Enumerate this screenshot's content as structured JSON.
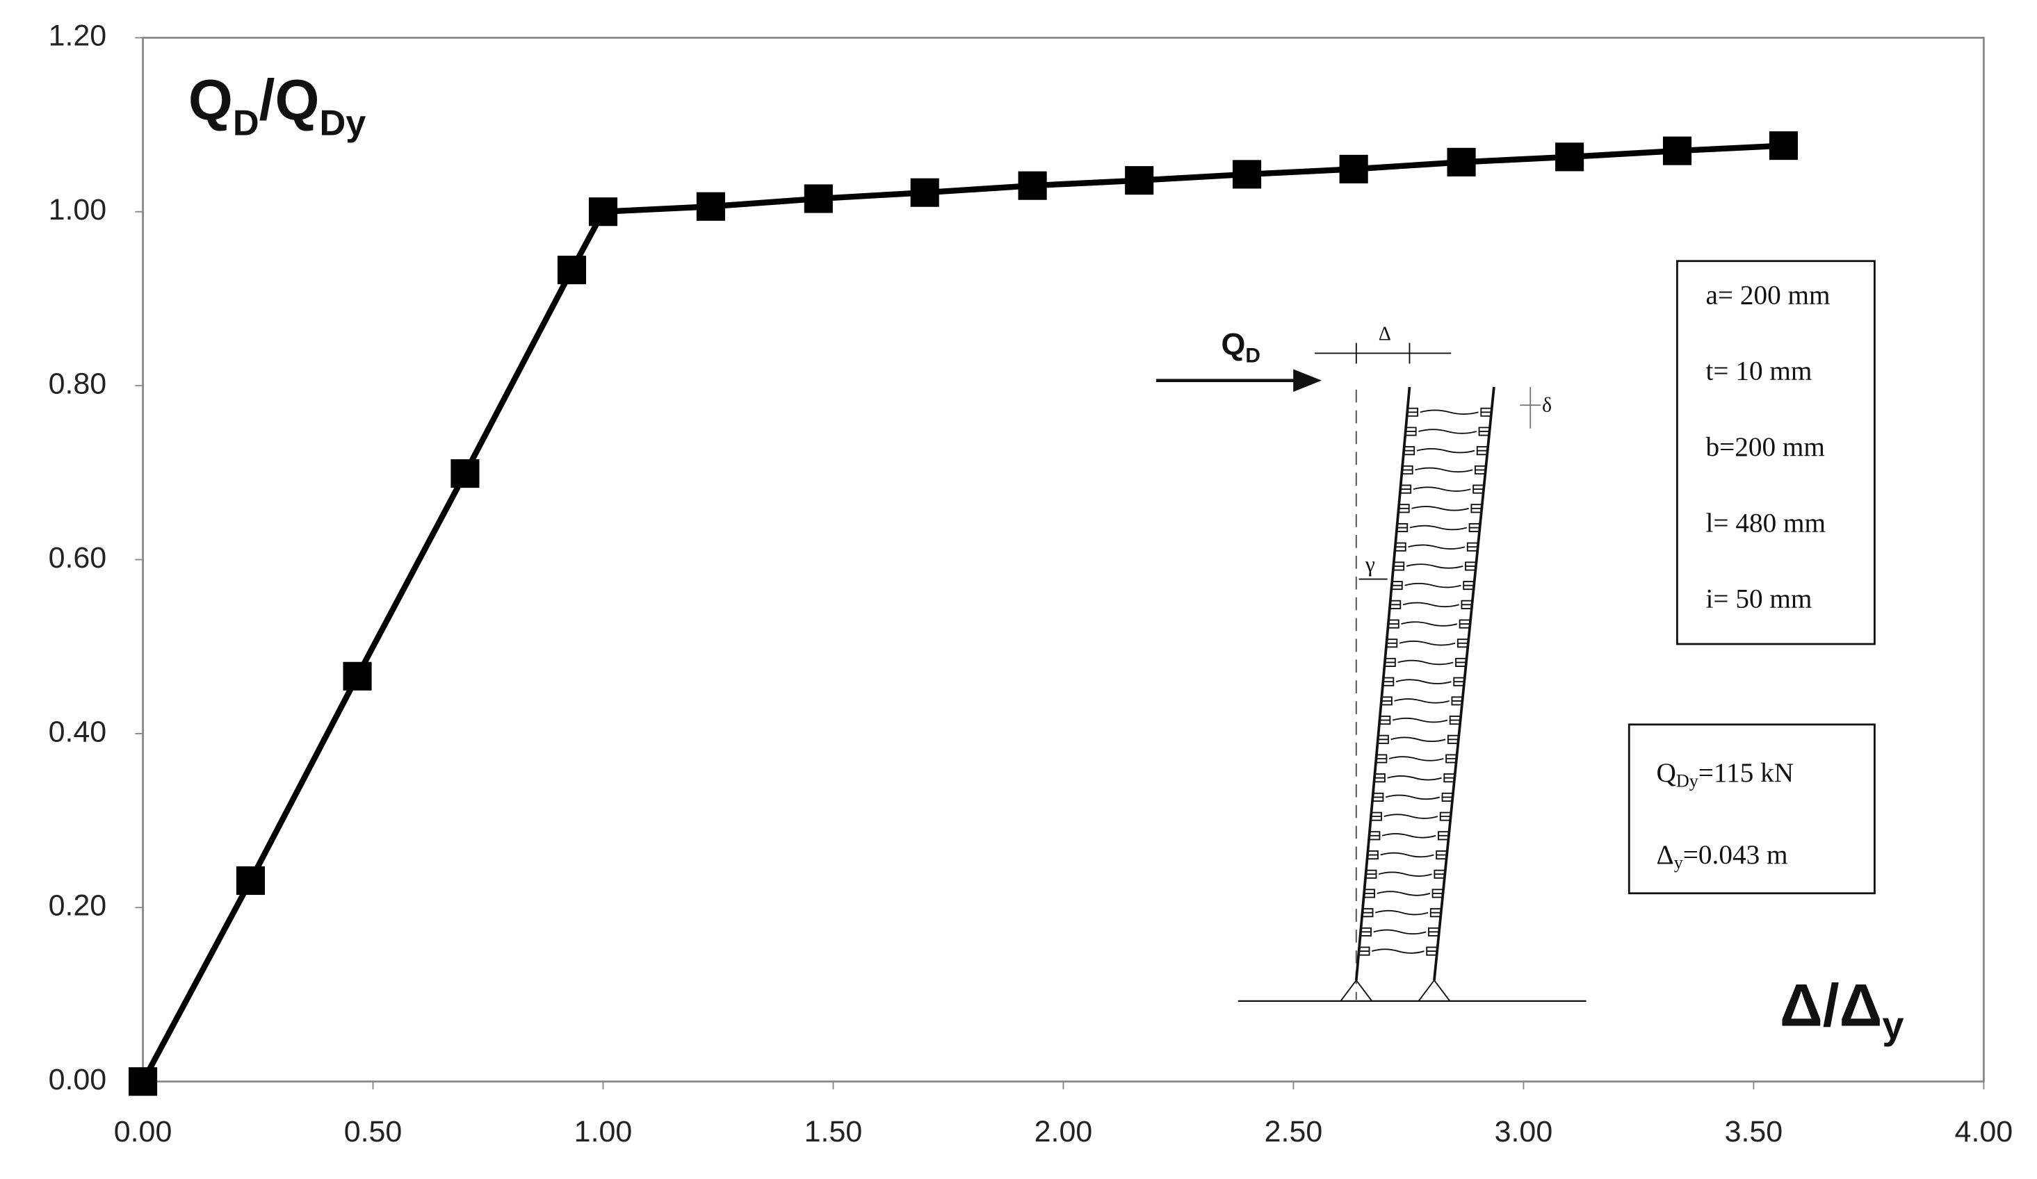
{
  "chart_data": {
    "type": "line",
    "y_label": {
      "parts": [
        "Q",
        "D",
        "/Q",
        "Dy"
      ]
    },
    "x_label": {
      "parts": [
        "Δ",
        "/Δ",
        "y"
      ]
    },
    "x": [
      0,
      0.234,
      0.466,
      0.7,
      0.932,
      1.0,
      1.234,
      1.468,
      1.699,
      1.933,
      2.165,
      2.399,
      2.631,
      2.865,
      3.1,
      3.334,
      3.565
    ],
    "series": [
      {
        "color": "#000000",
        "values": [
          0,
          0.231,
          0.466,
          0.699,
          0.933,
          1.0,
          1.006,
          1.015,
          1.022,
          1.03,
          1.036,
          1.043,
          1.049,
          1.057,
          1.063,
          1.07,
          1.076
        ]
      }
    ],
    "xlim": [
      0,
      4
    ],
    "xticks": [
      {
        "value": 0,
        "label": "0.00"
      },
      {
        "value": 0.5,
        "label": "0.50"
      },
      {
        "value": 1,
        "label": "1.00"
      },
      {
        "value": 1.5,
        "label": "1.50"
      },
      {
        "value": 2,
        "label": "2.00"
      },
      {
        "value": 2.5,
        "label": "2.50"
      },
      {
        "value": 3,
        "label": "3.00"
      },
      {
        "value": 3.5,
        "label": "3.50"
      },
      {
        "value": 4,
        "label": "4.00"
      }
    ],
    "ylim": [
      0,
      1.2
    ],
    "yticks": [
      {
        "value": 0,
        "label": "0.00"
      },
      {
        "value": 0.2,
        "label": "0.20"
      },
      {
        "value": 0.4,
        "label": "0.40"
      },
      {
        "value": 0.6,
        "label": "0.60"
      },
      {
        "value": 0.8,
        "label": "0.80"
      },
      {
        "value": 1,
        "label": "1.00"
      },
      {
        "value": 1.2,
        "label": "1.20"
      }
    ],
    "grid": false,
    "properties_box": [
      "a= 200 mm",
      "t= 10 mm",
      "b=200 mm",
      "l= 480 mm",
      "i= 50 mm"
    ],
    "yield_box": [
      {
        "parts": [
          "Q",
          "Dy",
          "=115 kN"
        ]
      },
      {
        "parts": [
          "Δ",
          "y",
          "=0.043 m"
        ]
      }
    ],
    "diagram": {
      "force_label": {
        "parts": [
          "Q",
          "D"
        ]
      },
      "displacement": "Δ",
      "slip": "δ",
      "angle": "γ"
    }
  }
}
